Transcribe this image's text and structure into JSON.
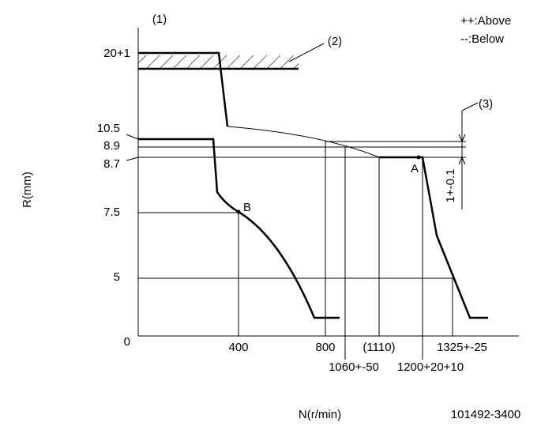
{
  "labels": {
    "callout_1": "(1)",
    "legend_above": "++:Above",
    "legend_below": "--:Below",
    "callout_2": "(2)",
    "callout_3": "(3)",
    "y_axis_title": "R(mm)",
    "x_axis_title": "N(r/min)",
    "drawing_number": "101492-3400",
    "y_20": "20+1",
    "y_10_5": "10.5",
    "y_8_9": "8.9",
    "y_8_7": "8.7",
    "y_7_5": "7.5",
    "y_5": "5",
    "origin": "0",
    "x_400": "400",
    "x_800": "800",
    "x_1110": "(1110)",
    "x_1325": "1325+-25",
    "x_1060": "1060+-50",
    "x_1200": "1200+20+10",
    "point_a": "A",
    "point_b": "B",
    "tolerance": "1+-0.1"
  }
}
